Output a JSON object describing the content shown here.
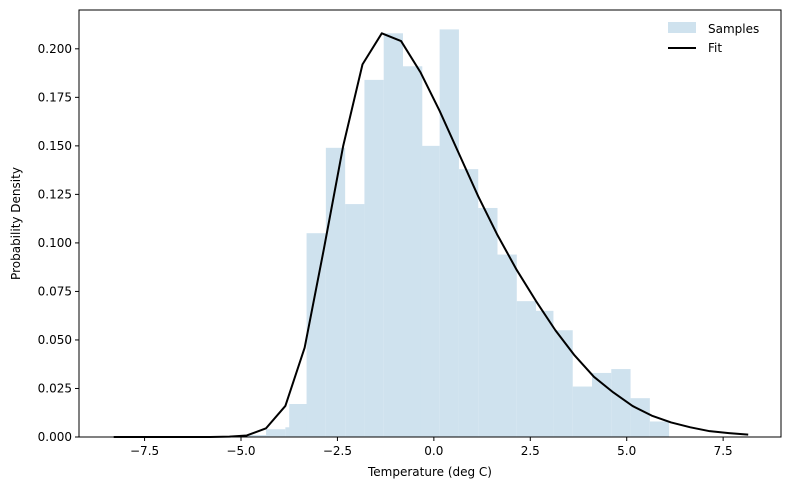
{
  "chart_data": {
    "type": "bar",
    "xlabel": "Temperature (deg C)",
    "ylabel": "Probability Density",
    "xlim": [
      -9.2,
      9.0
    ],
    "ylim": [
      0,
      0.22
    ],
    "xticks": [
      -7.5,
      -5.0,
      -2.5,
      0.0,
      2.5,
      5.0,
      7.5
    ],
    "xtick_labels": [
      "−7.5",
      "−5.0",
      "−2.5",
      "0.0",
      "2.5",
      "5.0",
      "7.5"
    ],
    "yticks": [
      0,
      0.025,
      0.05,
      0.075,
      0.1,
      0.125,
      0.15,
      0.175,
      0.2
    ],
    "ytick_labels": [
      "0.000",
      "0.025",
      "0.050",
      "0.075",
      "0.100",
      "0.125",
      "0.150",
      "0.175",
      "0.200"
    ],
    "grid": false,
    "legend_position": "top-right",
    "histogram": {
      "name": "Samples",
      "color": "#cfe2ee",
      "bin_width": 0.5,
      "bins": [
        {
          "x0": -4.85,
          "value": 0.001
        },
        {
          "x0": -4.35,
          "value": 0.004
        },
        {
          "x0": -3.85,
          "value": 0.005
        },
        {
          "x0": -3.75,
          "value": 0.017
        },
        {
          "x0": -3.3,
          "value": 0.105
        },
        {
          "x0": -2.8,
          "value": 0.149
        },
        {
          "x0": -2.3,
          "value": 0.12
        },
        {
          "x0": -1.8,
          "value": 0.184
        },
        {
          "x0": -1.3,
          "value": 0.208
        },
        {
          "x0": -0.8,
          "value": 0.191
        },
        {
          "x0": -0.35,
          "value": 0.15
        },
        {
          "x0": 0.15,
          "value": 0.21
        },
        {
          "x0": 0.65,
          "value": 0.138
        },
        {
          "x0": 1.15,
          "value": 0.118
        },
        {
          "x0": 1.65,
          "value": 0.094
        },
        {
          "x0": 2.15,
          "value": 0.07
        },
        {
          "x0": 2.6,
          "value": 0.065
        },
        {
          "x0": 3.1,
          "value": 0.055
        },
        {
          "x0": 3.6,
          "value": 0.026
        },
        {
          "x0": 4.1,
          "value": 0.033
        },
        {
          "x0": 4.6,
          "value": 0.035
        },
        {
          "x0": 5.1,
          "value": 0.02
        },
        {
          "x0": 5.6,
          "value": 0.008
        }
      ]
    },
    "line": {
      "name": "Fit",
      "color": "#000000",
      "x": [
        -8.3,
        -7.8,
        -7.3,
        -6.8,
        -6.3,
        -5.8,
        -5.3,
        -4.85,
        -4.35,
        -3.85,
        -3.35,
        -2.85,
        -2.35,
        -1.85,
        -1.35,
        -0.85,
        -0.35,
        0.15,
        0.65,
        1.15,
        1.65,
        2.15,
        2.65,
        3.15,
        3.65,
        4.15,
        4.65,
        5.15,
        5.65,
        6.15,
        6.65,
        7.15,
        7.65,
        8.15
      ],
      "y": [
        0.0,
        0.0,
        0.0,
        0.0,
        0.0,
        0.0,
        0.0002,
        0.0008,
        0.0045,
        0.016,
        0.046,
        0.097,
        0.15,
        0.192,
        0.208,
        0.204,
        0.188,
        0.168,
        0.146,
        0.124,
        0.104,
        0.086,
        0.07,
        0.055,
        0.042,
        0.031,
        0.023,
        0.016,
        0.011,
        0.0075,
        0.005,
        0.003,
        0.002,
        0.0012
      ]
    }
  }
}
